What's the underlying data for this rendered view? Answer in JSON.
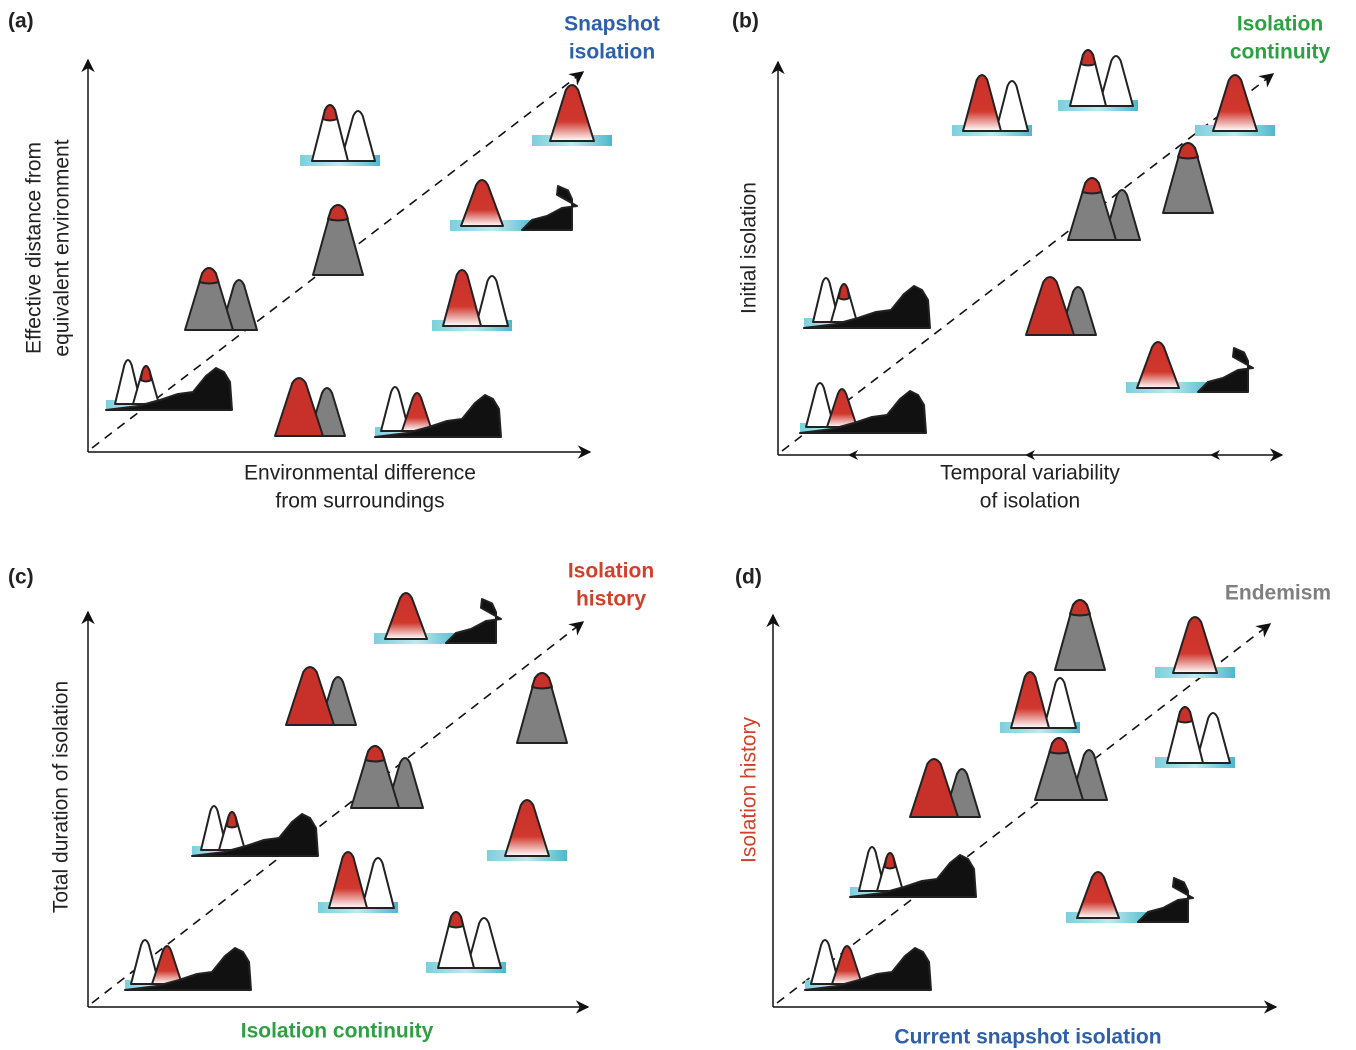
{
  "panels": [
    {
      "label": "(a)",
      "goal": [
        "Snapshot",
        "isolation"
      ],
      "y_axis": [
        "Effective distance from",
        "equivalent environment"
      ],
      "x_axis": [
        "Environmental difference",
        "from surroundings"
      ]
    },
    {
      "label": "(b)",
      "goal": [
        "Isolation",
        "continuity"
      ],
      "y_axis": [
        "Initial isolation"
      ],
      "x_axis": [
        "Temporal variability",
        "of isolation"
      ]
    },
    {
      "label": "(c)",
      "goal": [
        "Isolation",
        "history"
      ],
      "y_axis": [
        "Total duration of isolation"
      ],
      "x_axis": [
        "Isolation continuity"
      ]
    },
    {
      "label": "(d)",
      "goal": [
        "Endemism"
      ],
      "y_axis": [
        "Isolation history"
      ],
      "x_axis": [
        "Current snapshot isolation"
      ]
    }
  ]
}
